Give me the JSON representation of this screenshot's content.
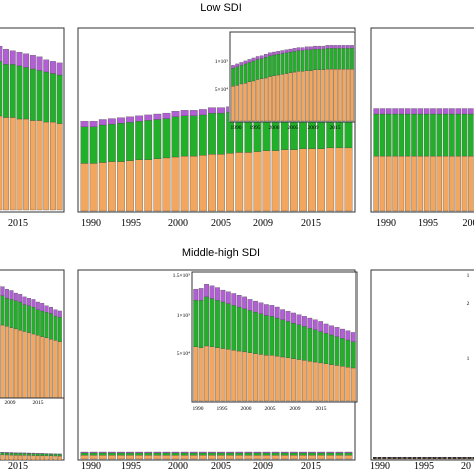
{
  "colors": {
    "orange": "#f2a65e",
    "green": "#22b02a",
    "purple": "#b25fd6",
    "frame": "#333333"
  },
  "titles": {
    "top": "Low SDI",
    "bottom": "Middle-high SDI"
  },
  "chart_data": [
    {
      "id": "top-center",
      "type": "bar",
      "stacked": true,
      "series_order": [
        "orange",
        "green",
        "purple"
      ],
      "x": [
        1990,
        1991,
        1992,
        1993,
        1994,
        1995,
        1996,
        1997,
        1998,
        1999,
        2000,
        2001,
        2002,
        2003,
        2004,
        2005,
        2006,
        2007,
        2008,
        2009,
        2010,
        2011,
        2012,
        2013,
        2014,
        2015,
        2016,
        2017,
        2018,
        2019
      ],
      "ymax": 100,
      "orange": [
        26,
        26,
        26.5,
        27,
        27,
        27.5,
        28,
        28,
        28.5,
        29,
        29.5,
        30,
        30,
        30.5,
        31,
        31,
        31.5,
        32,
        32,
        32.5,
        33,
        33,
        33.5,
        33.5,
        34,
        34,
        34,
        34.5,
        34.5,
        34.5
      ],
      "green": [
        20,
        20,
        20.5,
        20.5,
        21,
        21,
        21,
        21.5,
        21.5,
        21.5,
        22,
        22,
        22,
        22,
        22.5,
        22.5,
        22.5,
        22.5,
        23,
        23,
        23,
        23,
        23,
        23,
        23,
        23,
        23,
        23,
        23,
        23
      ],
      "purple": [
        3,
        3,
        3,
        3,
        3,
        3,
        3,
        3,
        3,
        3,
        3,
        3,
        3,
        3,
        3,
        3,
        3,
        3,
        3,
        3,
        3,
        3,
        3,
        3,
        3,
        3,
        3,
        3,
        3,
        3
      ],
      "xticks": [
        "1990",
        "1995",
        "2000",
        "2005",
        "2009",
        "2015"
      ],
      "inset": {
        "ymax": 120,
        "yticks": [
          "5×10⁴",
          "1×10⁵"
        ],
        "xticks": [
          "1990",
          "1995",
          "2000",
          "2005",
          "2009",
          "2015"
        ],
        "orange": [
          47,
          48,
          50,
          51,
          53,
          54,
          56,
          57,
          58,
          60,
          61,
          62,
          63,
          64,
          65,
          66,
          67,
          67,
          68,
          68,
          69,
          69,
          69,
          70,
          70,
          70,
          70,
          70,
          70,
          70
        ],
        "green": [
          24,
          25,
          25,
          26,
          26,
          27,
          27,
          27,
          28,
          28,
          28,
          28,
          28,
          28,
          28,
          28,
          28,
          28,
          28,
          28,
          28,
          28,
          28,
          28,
          28,
          28,
          28,
          28,
          28,
          28
        ],
        "purple": [
          4,
          4,
          4,
          4,
          4,
          4,
          4,
          4,
          4,
          4,
          4,
          4,
          4,
          4,
          4,
          4,
          4,
          4,
          4,
          4,
          4,
          4,
          4,
          4,
          4,
          4,
          4,
          4,
          4,
          4
        ]
      }
    },
    {
      "id": "bottom-center",
      "type": "bar",
      "stacked": true,
      "series_order": [
        "orange",
        "green",
        "purple"
      ],
      "x": [
        1990,
        1991,
        1992,
        1993,
        1994,
        1995,
        1996,
        1997,
        1998,
        1999,
        2000,
        2001,
        2002,
        2003,
        2004,
        2005,
        2006,
        2007,
        2008,
        2009,
        2010,
        2011,
        2012,
        2013,
        2014,
        2015,
        2016,
        2017,
        2018,
        2019
      ],
      "ymax": 100,
      "orange": [
        2,
        2,
        2,
        2,
        2,
        2,
        2,
        2,
        2,
        2,
        2,
        2,
        2,
        2,
        2,
        2,
        2,
        2,
        2,
        2,
        2,
        2,
        2,
        2,
        2,
        2,
        2,
        2,
        2,
        2
      ],
      "green": [
        1.2,
        1.2,
        1.2,
        1.2,
        1.2,
        1.2,
        1.2,
        1.2,
        1.2,
        1.2,
        1.2,
        1.2,
        1.2,
        1.2,
        1.2,
        1.2,
        1.2,
        1.2,
        1.2,
        1.2,
        1.2,
        1.2,
        1.2,
        1.2,
        1.2,
        1.2,
        1.2,
        1.2,
        1.2,
        1.2
      ],
      "purple": [
        0.5,
        0.5,
        0.5,
        0.5,
        0.5,
        0.5,
        0.5,
        0.5,
        0.5,
        0.5,
        0.5,
        0.5,
        0.5,
        0.5,
        0.5,
        0.5,
        0.5,
        0.5,
        0.5,
        0.5,
        0.5,
        0.5,
        0.5,
        0.5,
        0.5,
        0.5,
        0.5,
        0.5,
        0.5,
        0.5
      ],
      "xticks": [
        "1990",
        "1995",
        "2000",
        "2005",
        "2009",
        "2015"
      ],
      "inset": {
        "ymax": 150,
        "yticks": [
          "5×10⁴",
          "1×10⁵",
          "1.5×10⁵"
        ],
        "xticks": [
          "1990",
          "1995",
          "2000",
          "2005",
          "2009",
          "2015"
        ],
        "orange": [
          64,
          63,
          65,
          64,
          63,
          62,
          61,
          60,
          59,
          58,
          57,
          56,
          55,
          54,
          54,
          53,
          52,
          51,
          50,
          49,
          48,
          47,
          46,
          45,
          44,
          43,
          42,
          41,
          40,
          39
        ],
        "green": [
          55,
          56,
          58,
          57,
          56,
          55,
          54,
          53,
          52,
          51,
          50,
          49,
          48,
          47,
          46,
          45,
          44,
          43,
          42,
          41,
          40,
          39,
          38,
          37,
          36,
          35,
          34,
          33,
          32,
          31
        ],
        "purple": [
          13,
          14,
          15,
          15,
          15,
          14,
          14,
          14,
          14,
          14,
          13,
          13,
          13,
          13,
          13,
          13,
          12,
          12,
          12,
          12,
          12,
          12,
          12,
          12,
          11,
          11,
          11,
          11,
          11,
          11
        ]
      }
    },
    {
      "id": "top-left-partial",
      "type": "bar",
      "stacked": true,
      "series_order": [
        "orange",
        "green",
        "purple"
      ],
      "x": [
        2010,
        2011,
        2012,
        2013,
        2014,
        2015,
        2016,
        2017,
        2018,
        2019
      ],
      "ymax": 100,
      "orange": [
        62,
        61,
        61,
        60,
        60,
        59,
        59,
        58,
        58,
        57
      ],
      "green": [
        36,
        35,
        35,
        35,
        34,
        34,
        33,
        33,
        32,
        32
      ],
      "purple": [
        10,
        10,
        9,
        9,
        9,
        9,
        9,
        8,
        8,
        8
      ],
      "xticks": [
        "2015"
      ]
    },
    {
      "id": "top-right-partial",
      "type": "bar",
      "stacked": true,
      "series_order": [
        "orange",
        "green",
        "purple"
      ],
      "x": [
        1990,
        1991,
        1992,
        1993,
        1994,
        1995,
        1996,
        1997,
        1998,
        1999,
        2000,
        2001,
        2002,
        2003,
        2004,
        2005
      ],
      "ymax": 100,
      "orange": [
        30,
        30,
        30,
        30,
        30,
        30,
        30,
        30,
        30,
        30,
        30,
        30,
        30,
        30,
        30,
        30
      ],
      "green": [
        23,
        23,
        23,
        23,
        23,
        23,
        23,
        23,
        23,
        23,
        23,
        23,
        23,
        23,
        23,
        23
      ],
      "purple": [
        3,
        3,
        3,
        3,
        3,
        3,
        3,
        3,
        3,
        3,
        3,
        3,
        3,
        3,
        3,
        3
      ],
      "xticks": [
        "1990",
        "1995",
        "200"
      ]
    },
    {
      "id": "bottom-left-partial",
      "type": "bar",
      "stacked": true,
      "series_order": [
        "orange",
        "green",
        "purple"
      ],
      "x": [
        2005,
        2006,
        2007,
        2008,
        2009,
        2010,
        2011,
        2012,
        2013,
        2014,
        2015,
        2016,
        2017,
        2018,
        2019
      ],
      "ymax": 100,
      "orange": [
        58,
        57,
        56,
        55,
        54,
        53,
        52,
        51,
        50,
        49,
        48,
        47,
        46,
        45,
        44
      ],
      "green": [
        23,
        23,
        22,
        22,
        22,
        22,
        21,
        21,
        21,
        20,
        20,
        20,
        20,
        19,
        19
      ],
      "purple": [
        7,
        7,
        7,
        7,
        6,
        6,
        6,
        6,
        6,
        6,
        6,
        5,
        5,
        5,
        5
      ],
      "xticks": [
        "2009",
        "2015"
      ],
      "lower_strip": {
        "xticks": [
          "2015"
        ]
      }
    },
    {
      "id": "bottom-right-partial",
      "type": "bar",
      "stacked": true,
      "series_order": [
        "orange",
        "green",
        "purple"
      ],
      "x": [
        1990,
        1991,
        1992,
        1993,
        1994,
        1995,
        1996,
        1997,
        1998,
        1999,
        2000,
        2001,
        2002,
        2003,
        2004,
        2005,
        2006,
        2007,
        2008,
        2009,
        2010,
        2011,
        2012
      ],
      "ymax": 100,
      "orange": [
        0.4,
        0.4,
        0.4,
        0.4,
        0.4,
        0.4,
        0.4,
        0.4,
        0.4,
        0.4,
        0.4,
        0.4,
        0.4,
        0.4,
        0.4,
        0.4,
        0.4,
        0.4,
        0.4,
        0.4,
        0.4,
        0.4,
        0.4
      ],
      "green": [
        0.3,
        0.3,
        0.3,
        0.3,
        0.3,
        0.3,
        0.3,
        0.3,
        0.3,
        0.3,
        0.3,
        0.3,
        0.3,
        0.3,
        0.3,
        0.3,
        0.3,
        0.3,
        0.3,
        0.3,
        0.3,
        0.3,
        0.3
      ],
      "purple": [
        0.2,
        0.2,
        0.2,
        0.2,
        0.2,
        0.2,
        0.2,
        0.2,
        0.2,
        0.2,
        0.2,
        0.2,
        0.2,
        0.2,
        0.2,
        0.2,
        0.2,
        0.2,
        0.2,
        0.2,
        0.2,
        0.2,
        0.2
      ],
      "xticks": [
        "1990",
        "1995",
        "20"
      ],
      "right_ticks": [
        "1",
        "2",
        "1"
      ]
    }
  ]
}
